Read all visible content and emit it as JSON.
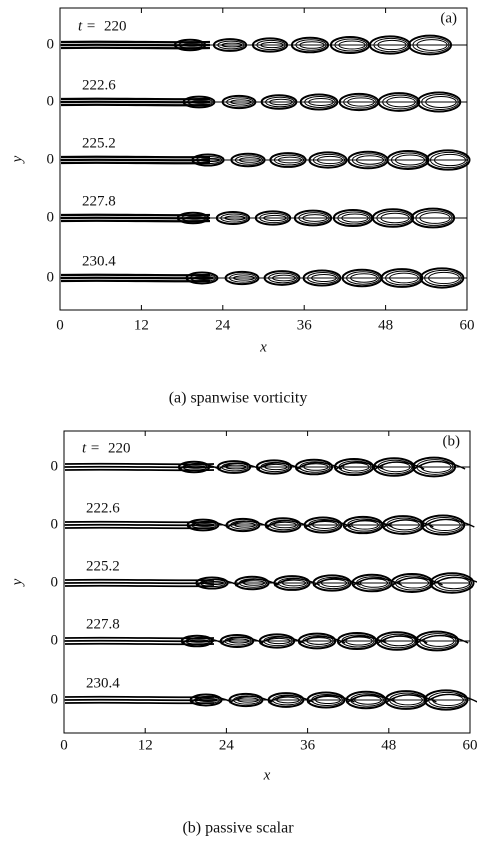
{
  "panels": [
    {
      "label": "(a)",
      "caption": "(a) spanwise vorticity",
      "x_label": "x",
      "y_label": "y",
      "time_symbol": "t =",
      "xlim": [
        0,
        60
      ],
      "xticks": [
        0,
        12,
        24,
        36,
        48,
        60
      ],
      "rows": [
        {
          "time": 220,
          "y_tick": 0
        },
        {
          "time": 222.6,
          "y_tick": 0
        },
        {
          "time": 225.2,
          "y_tick": 0
        },
        {
          "time": 227.8,
          "y_tick": 0
        },
        {
          "time": 230.4,
          "y_tick": 0
        }
      ]
    },
    {
      "label": "(b)",
      "caption": "(b) passive scalar",
      "x_label": "x",
      "y_label": "y",
      "time_symbol": "t =",
      "xlim": [
        0,
        60
      ],
      "xticks": [
        0,
        12,
        24,
        36,
        48,
        60
      ],
      "rows": [
        {
          "time": 220,
          "y_tick": 0
        },
        {
          "time": 222.6,
          "y_tick": 0
        },
        {
          "time": 225.2,
          "y_tick": 0
        },
        {
          "time": 227.8,
          "y_tick": 0
        },
        {
          "time": 230.4,
          "y_tick": 0
        }
      ]
    }
  ]
}
